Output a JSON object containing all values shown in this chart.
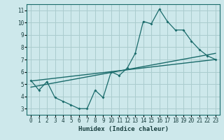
{
  "xlabel": "Humidex (Indice chaleur)",
  "xlim": [
    -0.5,
    23.5
  ],
  "ylim": [
    2.5,
    11.5
  ],
  "xticks": [
    0,
    1,
    2,
    3,
    4,
    5,
    6,
    7,
    8,
    9,
    10,
    11,
    12,
    13,
    14,
    15,
    16,
    17,
    18,
    19,
    20,
    21,
    22,
    23
  ],
  "yticks": [
    3,
    4,
    5,
    6,
    7,
    8,
    9,
    10,
    11
  ],
  "bg_color": "#cde8eb",
  "grid_color": "#aaccce",
  "line_color": "#1a6b6b",
  "line1_x": [
    0,
    1,
    2,
    3,
    4,
    5,
    6,
    7,
    8,
    9,
    10,
    11,
    12,
    13,
    14,
    15,
    16,
    17,
    18,
    19,
    20,
    21,
    22,
    23
  ],
  "line1_y": [
    5.3,
    4.5,
    5.2,
    3.9,
    3.6,
    3.3,
    3.0,
    3.0,
    4.5,
    3.9,
    6.0,
    5.7,
    6.3,
    7.5,
    10.1,
    9.9,
    11.1,
    10.1,
    9.4,
    9.4,
    8.5,
    7.8,
    7.3,
    7.0
  ],
  "line2_x": [
    0,
    23
  ],
  "line2_y": [
    5.25,
    7.0
  ],
  "line3_x": [
    0,
    23
  ],
  "line3_y": [
    4.75,
    7.5
  ]
}
